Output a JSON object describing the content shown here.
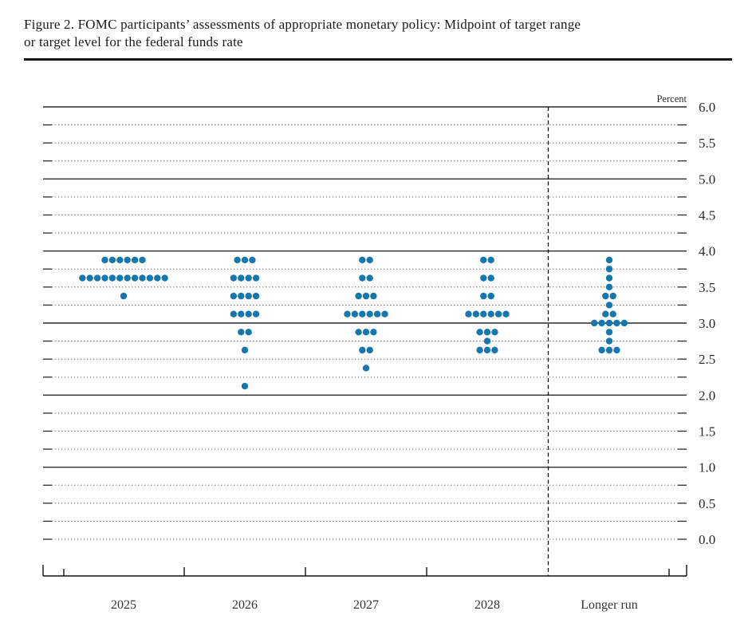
{
  "header": {
    "title_line1": "Figure 2. FOMC participants’ assessments of appropriate monetary policy: Midpoint of target range",
    "title_line2": "or target level for the federal funds rate"
  },
  "chart_data": {
    "type": "scatter",
    "subtype": "fomc-dot-plot",
    "title": "Figure 2. FOMC participants’ assessments of appropriate monetary policy: Midpoint of target range or target level for the federal funds rate",
    "ylabel": "Percent",
    "ylim": [
      0.0,
      6.0
    ],
    "grid_interval": 0.25,
    "solid_line_rates": [
      1.0,
      2.0,
      3.0,
      4.0,
      5.0,
      6.0
    ],
    "y_tick_labels": [
      "6.0",
      "5.5",
      "5.0",
      "4.5",
      "4.0",
      "3.5",
      "3.0",
      "2.5",
      "2.0",
      "1.5",
      "1.0",
      "0.5",
      "0.0"
    ],
    "grid": true,
    "legend": false,
    "dot_color": "#1577ad",
    "separator_after_category": "2028",
    "categories": [
      "2025",
      "2026",
      "2027",
      "2028",
      "Longer run"
    ],
    "series": [
      {
        "category": "2025",
        "dots": [
          {
            "rate": 3.875,
            "count": 6
          },
          {
            "rate": 3.625,
            "count": 12
          },
          {
            "rate": 3.375,
            "count": 1
          }
        ]
      },
      {
        "category": "2026",
        "dots": [
          {
            "rate": 3.875,
            "count": 3
          },
          {
            "rate": 3.625,
            "count": 4
          },
          {
            "rate": 3.375,
            "count": 4
          },
          {
            "rate": 3.125,
            "count": 4
          },
          {
            "rate": 2.875,
            "count": 2
          },
          {
            "rate": 2.625,
            "count": 1
          },
          {
            "rate": 2.125,
            "count": 1
          }
        ]
      },
      {
        "category": "2027",
        "dots": [
          {
            "rate": 3.875,
            "count": 2
          },
          {
            "rate": 3.625,
            "count": 2
          },
          {
            "rate": 3.375,
            "count": 3
          },
          {
            "rate": 3.125,
            "count": 6
          },
          {
            "rate": 2.875,
            "count": 3
          },
          {
            "rate": 2.625,
            "count": 2
          },
          {
            "rate": 2.375,
            "count": 1
          }
        ]
      },
      {
        "category": "2028",
        "dots": [
          {
            "rate": 3.875,
            "count": 2
          },
          {
            "rate": 3.625,
            "count": 2
          },
          {
            "rate": 3.375,
            "count": 2
          },
          {
            "rate": 3.125,
            "count": 6
          },
          {
            "rate": 2.875,
            "count": 3
          },
          {
            "rate": 2.75,
            "count": 1
          },
          {
            "rate": 2.625,
            "count": 3
          }
        ]
      },
      {
        "category": "Longer run",
        "dots": [
          {
            "rate": 3.875,
            "count": 1
          },
          {
            "rate": 3.75,
            "count": 1
          },
          {
            "rate": 3.625,
            "count": 1
          },
          {
            "rate": 3.5,
            "count": 1
          },
          {
            "rate": 3.375,
            "count": 2
          },
          {
            "rate": 3.25,
            "count": 1
          },
          {
            "rate": 3.125,
            "count": 2
          },
          {
            "rate": 3.0,
            "count": 5
          },
          {
            "rate": 2.875,
            "count": 1
          },
          {
            "rate": 2.75,
            "count": 1
          },
          {
            "rate": 2.625,
            "count": 3
          }
        ]
      }
    ]
  }
}
